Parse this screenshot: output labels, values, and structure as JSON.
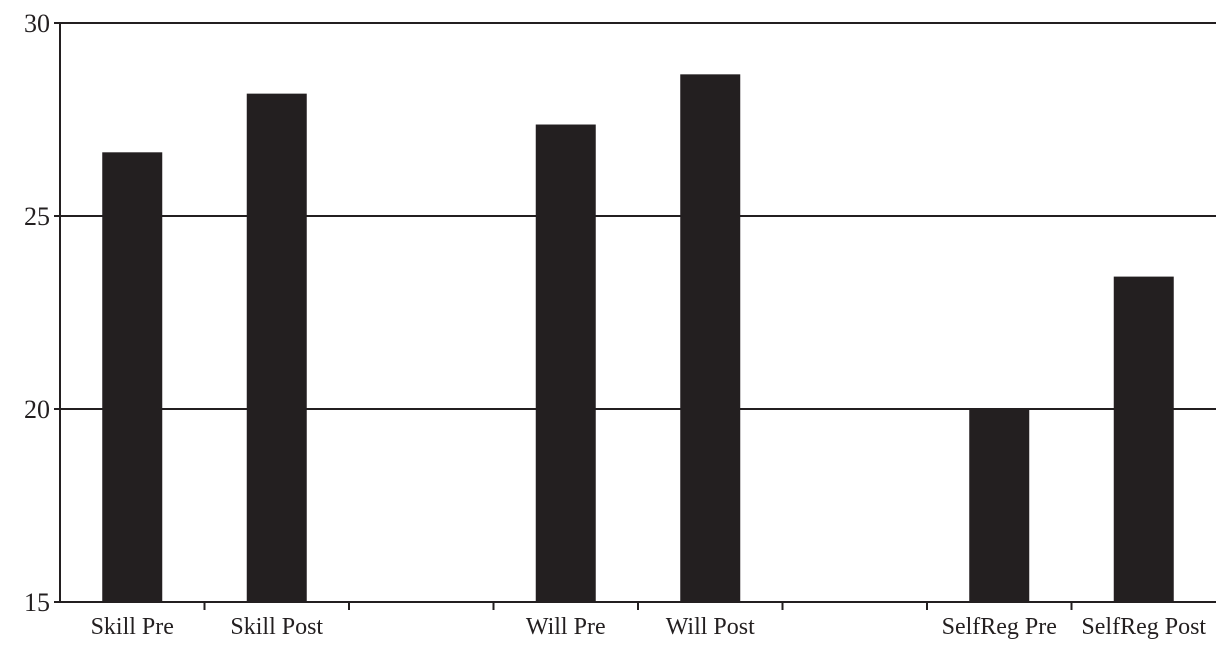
{
  "chart_data": {
    "type": "bar",
    "categories": [
      "Skill Pre",
      "Skill Post",
      "",
      "Will Pre",
      "Will Post",
      "",
      "SelfReg Pre",
      "SelfReg Post"
    ],
    "values": [
      26.65,
      28.17,
      null,
      27.37,
      28.67,
      null,
      20.02,
      23.43
    ],
    "title": "",
    "xlabel": "",
    "ylabel": "",
    "ylim": [
      15,
      30
    ],
    "yticks": [
      15,
      20,
      25,
      30
    ],
    "grid": true,
    "bar_color": "#231f20",
    "axis_color": "#231f20"
  }
}
